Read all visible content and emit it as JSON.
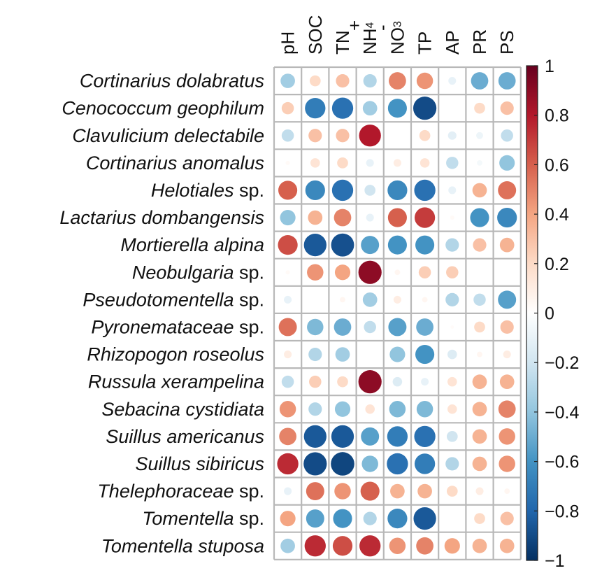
{
  "chart_data": {
    "type": "heatmap",
    "subtype": "correlation-circle-matrix",
    "title": "",
    "columns": [
      {
        "base": "pH",
        "sub": "",
        "sup": ""
      },
      {
        "base": "SOC",
        "sub": "",
        "sup": ""
      },
      {
        "base": "TN",
        "sub": "",
        "sup": ""
      },
      {
        "base": "NH",
        "sub": "4",
        "sup": "+"
      },
      {
        "base": "NO",
        "sub": "3",
        "sup": "-"
      },
      {
        "base": "TP",
        "sub": "",
        "sup": ""
      },
      {
        "base": "AP",
        "sub": "",
        "sup": ""
      },
      {
        "base": "PR",
        "sub": "",
        "sup": ""
      },
      {
        "base": "PS",
        "sub": "",
        "sup": ""
      }
    ],
    "rows": [
      {
        "italic": "Cortinarius  dolabratus",
        "plain": ""
      },
      {
        "italic": "Cenococcum  geophilum",
        "plain": ""
      },
      {
        "italic": "Clavulicium  delectabile",
        "plain": ""
      },
      {
        "italic": "Cortinarius  anomalus",
        "plain": ""
      },
      {
        "italic": "Helotiales",
        "plain": " sp."
      },
      {
        "italic": "Lactarius  dombangensis",
        "plain": ""
      },
      {
        "italic": "Mortierella  alpina",
        "plain": ""
      },
      {
        "italic": "Neobulgaria",
        "plain": " sp."
      },
      {
        "italic": "Pseudotomentella",
        "plain": " sp."
      },
      {
        "italic": "Pyronemataceae",
        "plain": " sp."
      },
      {
        "italic": "Rhizopogon  roseolus",
        "plain": ""
      },
      {
        "italic": "Russula  xerampelina",
        "plain": ""
      },
      {
        "italic": "Sebacina  cystidiata",
        "plain": ""
      },
      {
        "italic": "Suillus  americanus",
        "plain": ""
      },
      {
        "italic": "Suillus  sibiricus",
        "plain": ""
      },
      {
        "italic": "Thelephoraceae",
        "plain": " sp."
      },
      {
        "italic": "Tomentella",
        "plain": " sp."
      },
      {
        "italic": "Tomentella  stuposa",
        "plain": ""
      }
    ],
    "values": [
      [
        -0.35,
        0.2,
        0.3,
        -0.3,
        0.5,
        0.45,
        -0.1,
        -0.5,
        -0.5
      ],
      [
        0.25,
        -0.7,
        -0.75,
        -0.35,
        -0.6,
        -0.9,
        0.0,
        0.2,
        0.3
      ],
      [
        -0.25,
        0.3,
        0.3,
        0.8,
        0.0,
        0.2,
        -0.12,
        -0.08,
        -0.25
      ],
      [
        0.03,
        0.15,
        0.2,
        -0.1,
        0.1,
        0.15,
        -0.25,
        -0.05,
        -0.4
      ],
      [
        0.6,
        -0.65,
        -0.75,
        -0.2,
        -0.65,
        -0.75,
        -0.1,
        0.35,
        0.55
      ],
      [
        -0.4,
        0.35,
        0.5,
        -0.1,
        0.6,
        0.7,
        0.03,
        -0.6,
        -0.65
      ],
      [
        0.65,
        -0.85,
        -0.88,
        -0.55,
        -0.6,
        -0.6,
        -0.3,
        0.3,
        0.35
      ],
      [
        0.03,
        0.45,
        0.4,
        0.9,
        0.05,
        0.25,
        0.25,
        0.0,
        0.0
      ],
      [
        -0.1,
        0.0,
        0.05,
        -0.35,
        0.1,
        0.05,
        -0.3,
        -0.25,
        -0.55
      ],
      [
        0.55,
        -0.45,
        -0.5,
        -0.25,
        -0.55,
        -0.5,
        0.02,
        0.2,
        0.3
      ],
      [
        0.1,
        -0.3,
        -0.35,
        0.0,
        -0.4,
        -0.6,
        -0.15,
        0.05,
        0.1
      ],
      [
        -0.25,
        0.25,
        0.2,
        0.9,
        -0.15,
        -0.1,
        0.15,
        0.35,
        0.35
      ],
      [
        0.45,
        -0.3,
        -0.4,
        0.15,
        -0.45,
        -0.45,
        0.15,
        0.35,
        0.5
      ],
      [
        0.5,
        -0.85,
        -0.85,
        -0.55,
        -0.7,
        -0.75,
        -0.2,
        0.35,
        0.45
      ],
      [
        0.75,
        -0.9,
        -0.92,
        -0.45,
        -0.75,
        -0.7,
        -0.3,
        0.35,
        0.45
      ],
      [
        -0.1,
        0.55,
        0.45,
        0.6,
        0.35,
        0.35,
        0.2,
        0.1,
        0.05
      ],
      [
        0.4,
        -0.55,
        -0.6,
        -0.3,
        -0.65,
        -0.85,
        0.0,
        0.2,
        0.3
      ],
      [
        -0.35,
        0.75,
        0.65,
        0.75,
        0.45,
        0.5,
        0.4,
        0.35,
        0.35
      ]
    ],
    "colorbar": {
      "range": [
        -1,
        1
      ],
      "ticks": [
        1,
        0.8,
        0.6,
        0.4,
        0.2,
        0,
        -0.2,
        -0.4,
        -0.6,
        -0.8,
        -1
      ],
      "tick_labels": [
        "1",
        "0.8",
        "0.6",
        "0.4",
        "0.2",
        "0",
        "−0.2",
        "−0.4",
        "−0.6",
        "−0.8",
        "−1"
      ],
      "colors": [
        "#67001F",
        "#B2182B",
        "#D6604D",
        "#F4A582",
        "#FDDBC7",
        "#FFFFFF",
        "#D1E5F0",
        "#92C5DE",
        "#4393C3",
        "#2166AC",
        "#053061"
      ]
    }
  }
}
